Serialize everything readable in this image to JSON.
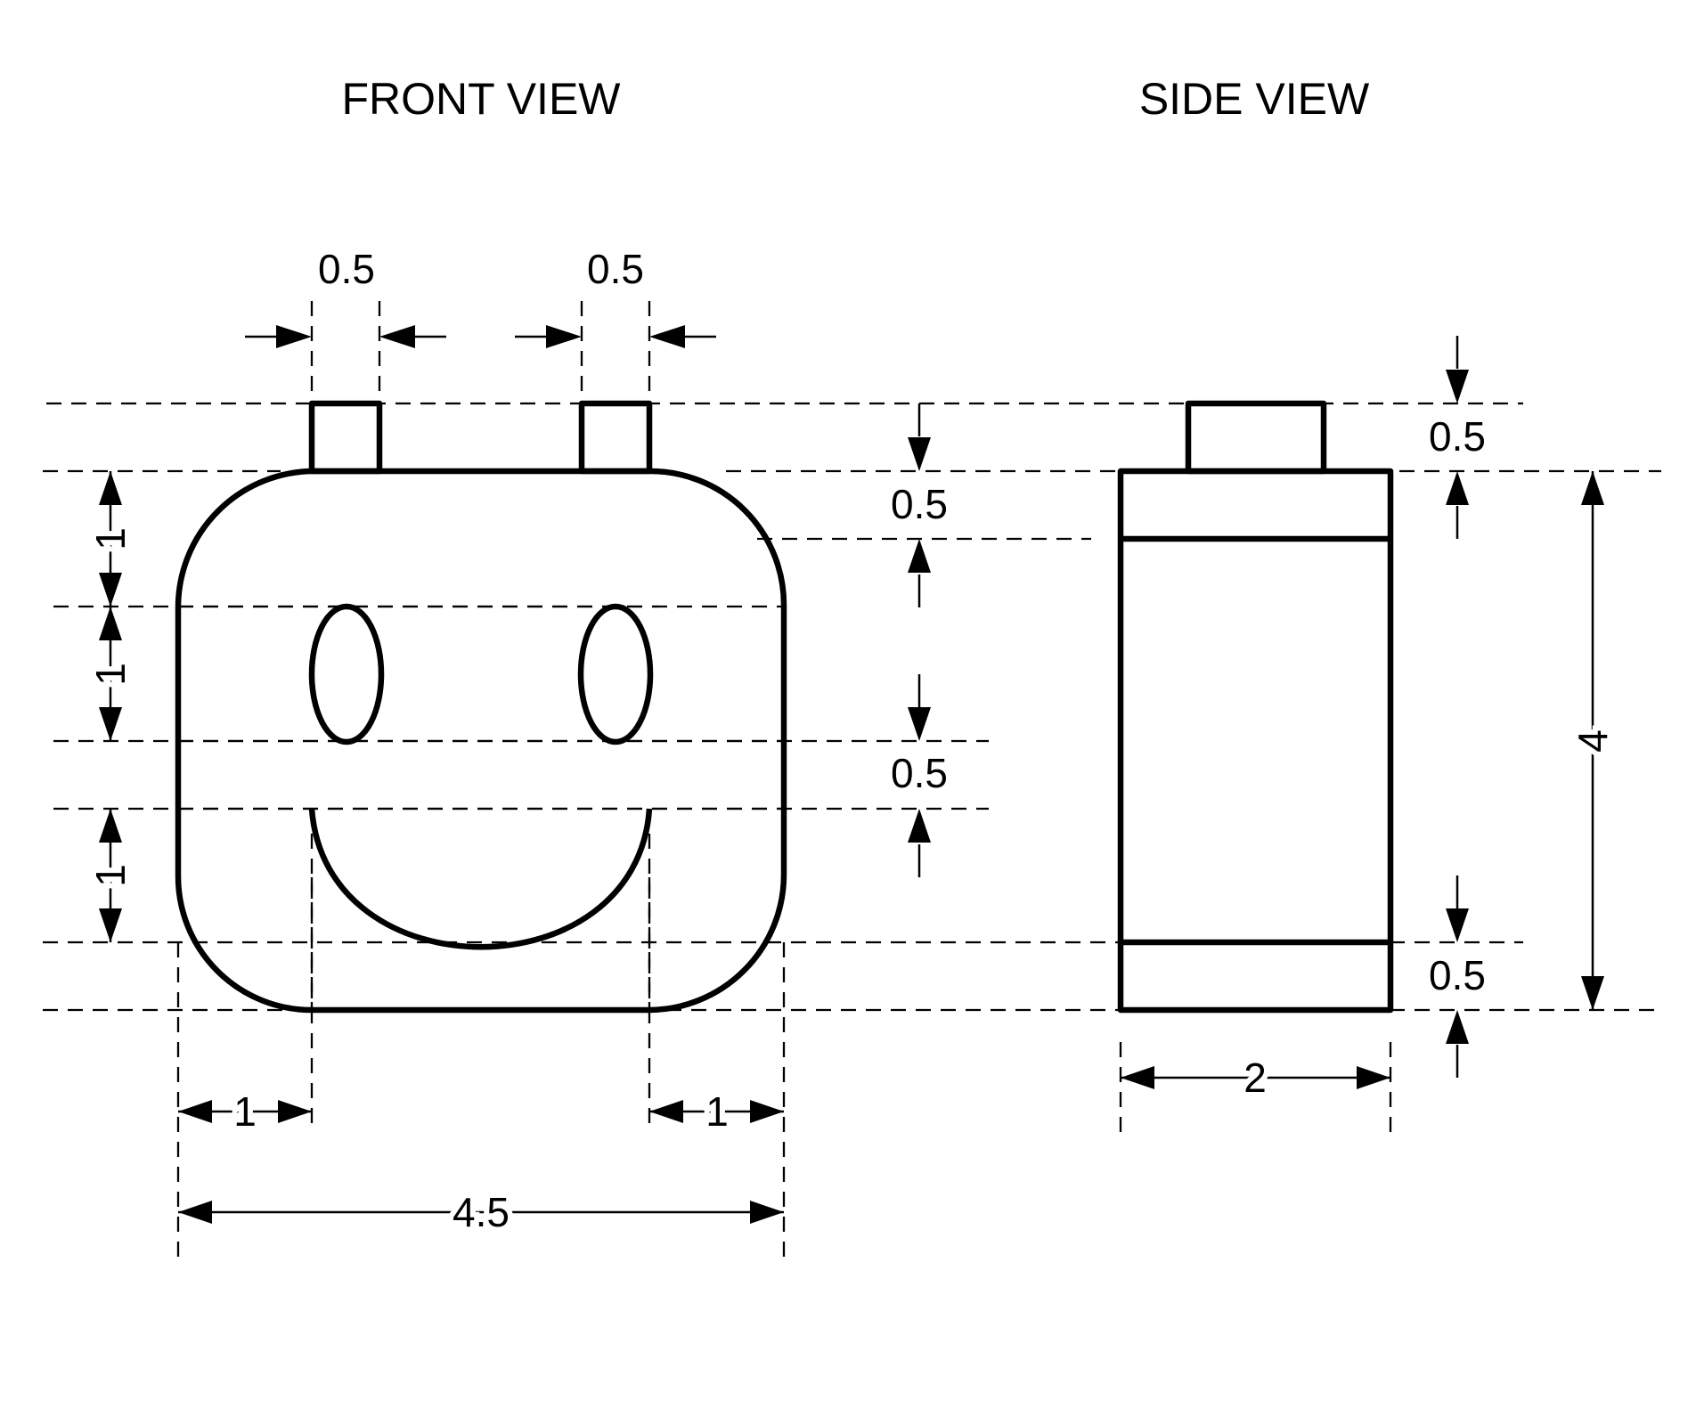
{
  "titles": {
    "front": "FRONT VIEW",
    "side": "SIDE VIEW"
  },
  "dimensions": {
    "front_tab_left_width": "0.5",
    "front_tab_right_width": "0.5",
    "front_forehead_height": "0.5",
    "front_eye_to_mouth_gap": "0.5",
    "front_left_upper_1": "1",
    "front_left_upper_2": "1",
    "front_left_lower": "1",
    "front_bottom_left_1": "1",
    "front_bottom_right_1": "1",
    "front_total_width": "4.5",
    "side_tab_height": "0.5",
    "side_bottom_band": "0.5",
    "side_height": "4",
    "side_width": "2"
  },
  "colors": {
    "ink": "#000000",
    "paper": "#ffffff"
  }
}
